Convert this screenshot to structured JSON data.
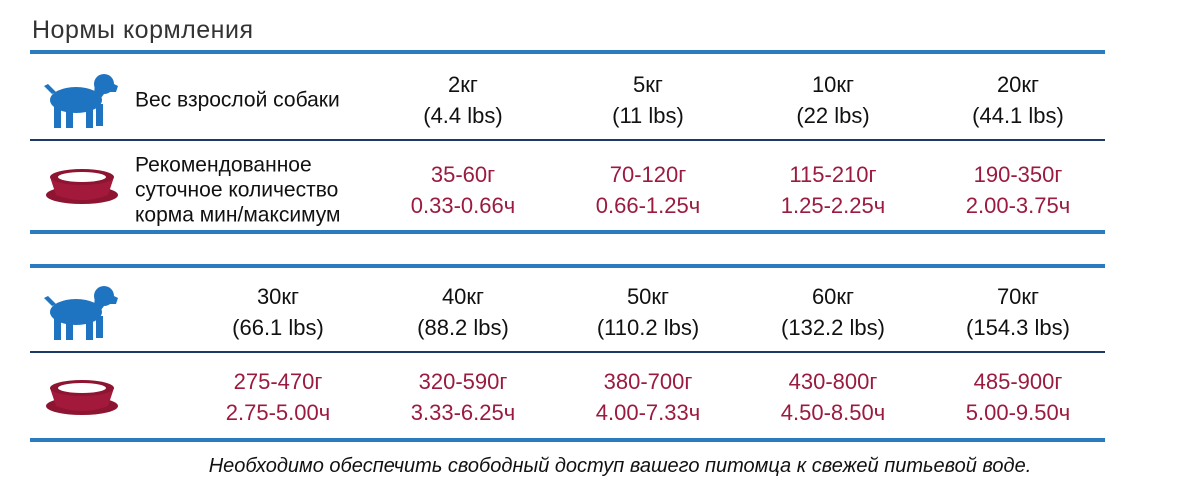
{
  "header": {
    "title": "Нормы кормления"
  },
  "tables": [
    {
      "rows": [
        {
          "label": [
            "Вес взрослой собаки"
          ],
          "cells": [
            [
              "2кг",
              "(4.4 lbs)"
            ],
            [
              "5кг",
              "(11 lbs)"
            ],
            [
              "10кг",
              "(22 lbs)"
            ],
            [
              "20кг",
              "(44.1 lbs)"
            ]
          ]
        },
        {
          "label": [
            "Рекомендованное",
            "суточное количество",
            "корма мин/максимум"
          ],
          "cells": [
            [
              "35-60г",
              "0.33-0.66ч"
            ],
            [
              "70-120г",
              "0.66-1.25ч"
            ],
            [
              "115-210г",
              "1.25-2.25ч"
            ],
            [
              "190-350г",
              "2.00-3.75ч"
            ]
          ]
        }
      ]
    },
    {
      "rows": [
        {
          "cells": [
            [
              "30кг",
              "(66.1 lbs)"
            ],
            [
              "40кг",
              "(88.2 lbs)"
            ],
            [
              "50кг",
              "(110.2 lbs)"
            ],
            [
              "60кг",
              "(132.2 lbs)"
            ],
            [
              "70кг",
              "(154.3 lbs)"
            ]
          ]
        },
        {
          "cells": [
            [
              "275-470г",
              "2.75-5.00ч"
            ],
            [
              "320-590г",
              "3.33-6.25ч"
            ],
            [
              "380-700г",
              "4.00-7.33ч"
            ],
            [
              "430-800г",
              "4.50-8.50ч"
            ],
            [
              "485-900г",
              "5.00-9.50ч"
            ]
          ]
        }
      ]
    }
  ],
  "footer": {
    "note": "Необходимо обеспечить свободный доступ  вашего питомца к свежей питьевой воде."
  }
}
